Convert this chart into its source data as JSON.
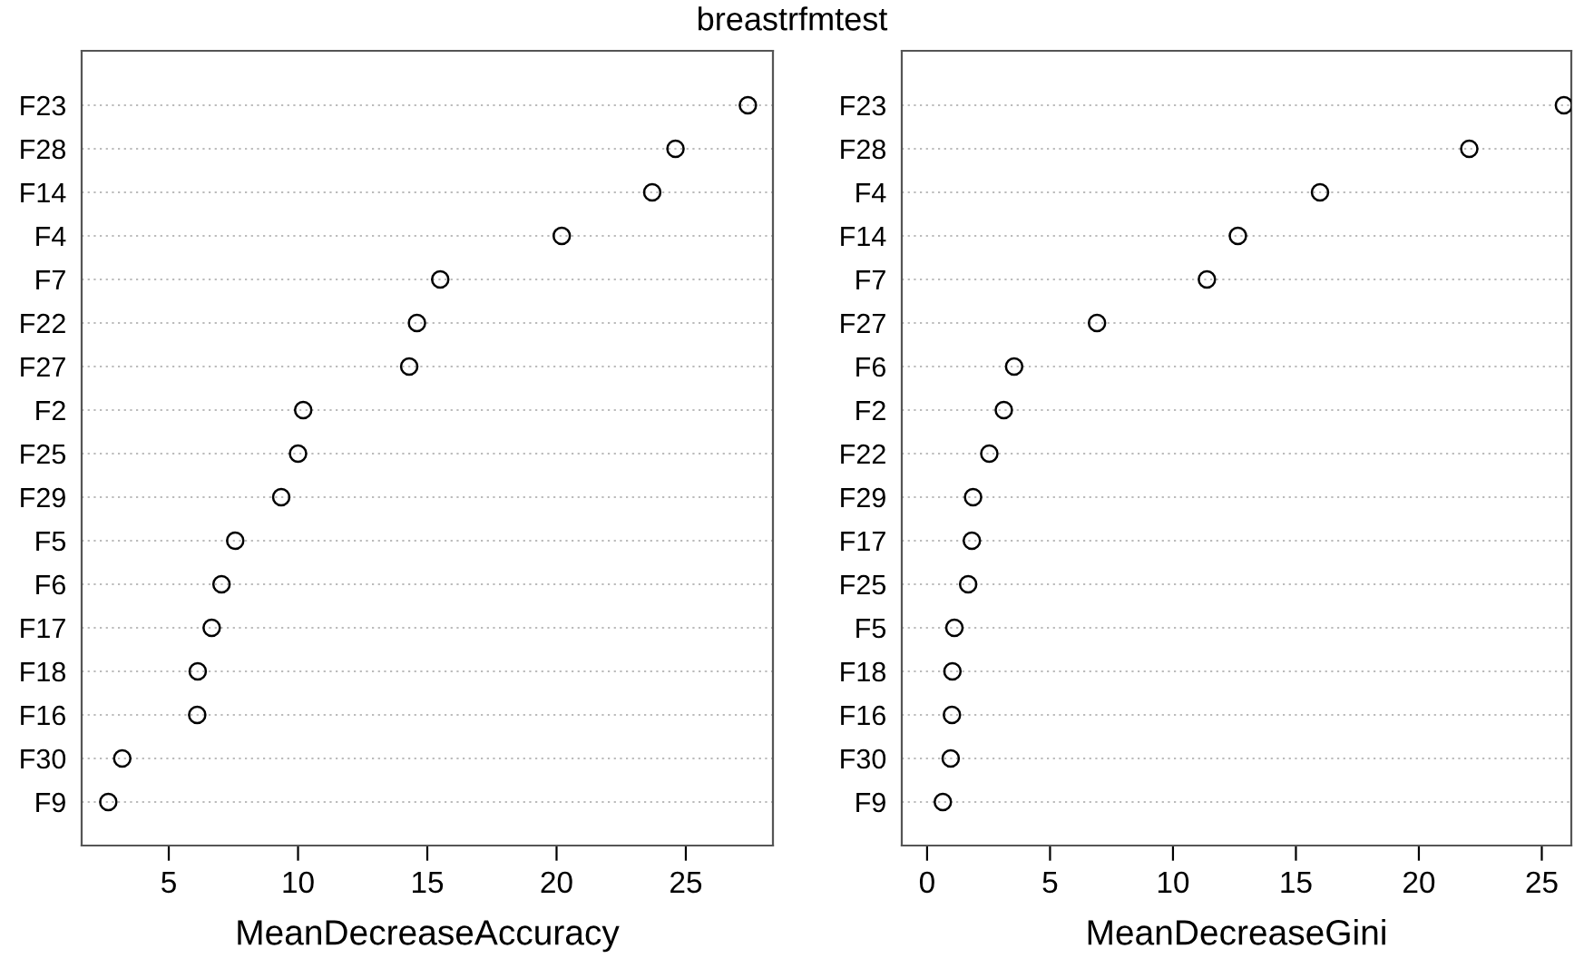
{
  "chart_data": [
    {
      "type": "scatter",
      "title": "breastrfmtest",
      "orientation": "horizontal",
      "marker": "circle",
      "grid": "y",
      "xlabel": "MeanDecreaseAccuracy",
      "categories": [
        "F23",
        "F28",
        "F14",
        "F4",
        "F7",
        "F22",
        "F27",
        "F2",
        "F25",
        "F29",
        "F5",
        "F6",
        "F17",
        "F18",
        "F16",
        "F30",
        "F9"
      ],
      "series": [
        {
          "color": "#000000",
          "values": [
            27.4,
            24.6,
            23.7,
            20.2,
            15.5,
            14.6,
            14.3,
            10.2,
            10.0,
            9.35,
            7.57,
            7.04,
            6.66,
            6.12,
            6.1,
            3.2,
            2.66
          ]
        }
      ],
      "xlim": [
        1.63,
        28.37
      ],
      "xticks": [
        5,
        10,
        15,
        20,
        25
      ]
    },
    {
      "type": "scatter",
      "orientation": "horizontal",
      "marker": "circle",
      "grid": "y",
      "xlabel": "MeanDecreaseGini",
      "categories": [
        "F23",
        "F28",
        "F4",
        "F14",
        "F7",
        "F27",
        "F6",
        "F2",
        "F22",
        "F29",
        "F17",
        "F25",
        "F5",
        "F18",
        "F16",
        "F30",
        "F9"
      ],
      "series": [
        {
          "color": "#000000",
          "values": [
            25.9,
            22.05,
            15.98,
            12.64,
            11.38,
            6.91,
            3.54,
            3.12,
            2.53,
            1.87,
            1.82,
            1.67,
            1.11,
            1.03,
            1.01,
            0.96,
            0.64
          ]
        }
      ],
      "xlim": [
        -1.03,
        26.2
      ],
      "xticks": [
        0,
        5,
        10,
        15,
        20,
        25
      ]
    }
  ]
}
